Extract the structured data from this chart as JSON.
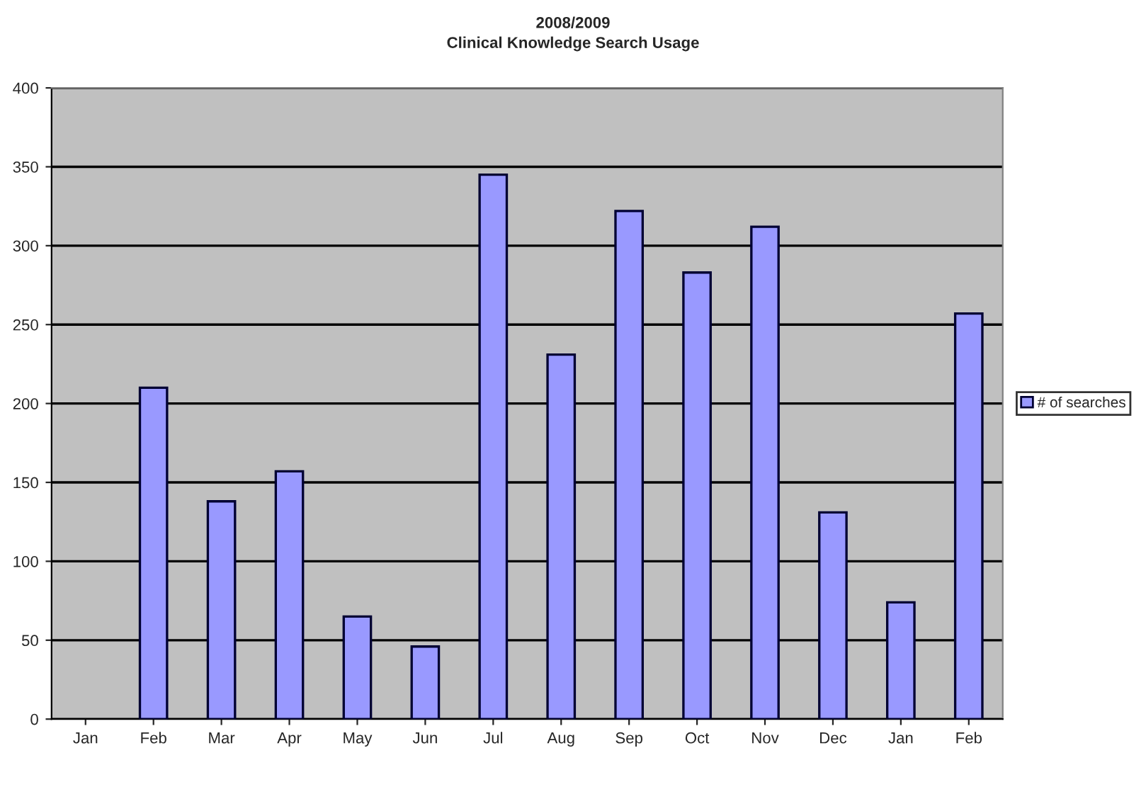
{
  "chart_data": {
    "type": "bar",
    "title": "2008/2009",
    "subtitle": "Clinical Knowledge Search Usage",
    "categories": [
      "Jan",
      "Feb",
      "Mar",
      "Apr",
      "May",
      "Jun",
      "Jul",
      "Aug",
      "Sep",
      "Oct",
      "Nov",
      "Dec",
      "Jan",
      "Feb"
    ],
    "series": [
      {
        "name": "# of searches",
        "color": "#9999ff",
        "values": [
          null,
          210,
          138,
          157,
          65,
          46,
          345,
          231,
          322,
          283,
          312,
          131,
          74,
          257
        ]
      }
    ],
    "ylim": [
      0,
      400
    ],
    "yticks": [
      0,
      50,
      100,
      150,
      200,
      250,
      300,
      350,
      400
    ],
    "grid": "y",
    "legend": "right"
  }
}
